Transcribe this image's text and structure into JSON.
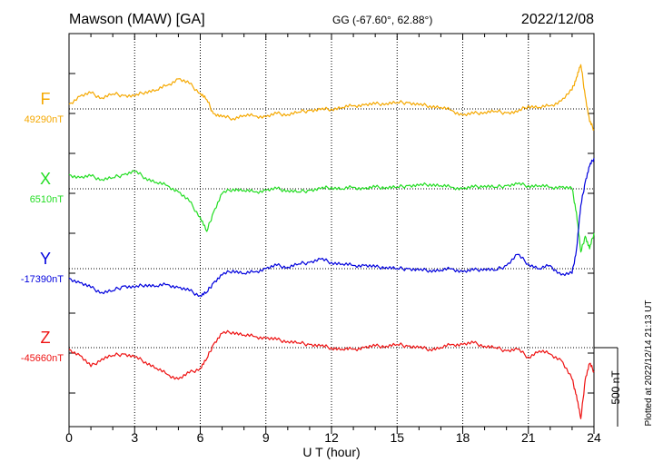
{
  "header": {
    "station": "Mawson (MAW)  [GA]",
    "coords": "GG (-67.60°,  62.88°)",
    "date": "2022/12/08"
  },
  "footer": {
    "plotted": "Plotted at 2022/12/14 21:13 UT"
  },
  "chart_data": {
    "type": "line",
    "title": "Mawson (MAW)  [GA]",
    "xlabel": "U T (hour)",
    "xlim": [
      0,
      24
    ],
    "x_ticks": [
      "0",
      "3",
      "6",
      "9",
      "12",
      "15",
      "18",
      "21",
      "24"
    ],
    "grid": true,
    "scale_bar": {
      "label": "500 nT",
      "value_nT": 500
    },
    "series": [
      {
        "name": "F",
        "baseline_label": "49290nT",
        "baseline_nT": 49290,
        "color": "#f5a800",
        "x": [
          0,
          0.5,
          1,
          1.5,
          2,
          2.5,
          3,
          3.5,
          4,
          4.5,
          5,
          5.5,
          6,
          6.3,
          6.6,
          7,
          7.5,
          8,
          8.5,
          9,
          9.5,
          10,
          10.5,
          11,
          11.5,
          12,
          12.5,
          13,
          13.5,
          14,
          14.5,
          15,
          15.5,
          16,
          16.5,
          17,
          17.5,
          18,
          18.5,
          19,
          19.5,
          20,
          20.5,
          21,
          21.5,
          22,
          22.5,
          23,
          23.2,
          23.4,
          23.6,
          23.8,
          24
        ],
        "values": [
          30,
          80,
          100,
          70,
          95,
          85,
          80,
          110,
          120,
          150,
          190,
          160,
          100,
          60,
          -30,
          -50,
          -60,
          -40,
          -45,
          -50,
          -30,
          -35,
          -20,
          -10,
          -5,
          0,
          10,
          20,
          25,
          30,
          35,
          40,
          40,
          25,
          20,
          10,
          -10,
          -40,
          -30,
          -20,
          -15,
          -25,
          -20,
          20,
          10,
          20,
          50,
          120,
          200,
          280,
          80,
          -80,
          -130
        ]
      },
      {
        "name": "X",
        "baseline_label": "6510nT",
        "baseline_nT": 6510,
        "color": "#22dd22",
        "x": [
          0,
          0.5,
          1,
          1.5,
          2,
          2.5,
          3,
          3.5,
          4,
          4.5,
          5,
          5.5,
          6,
          6.3,
          6.6,
          7,
          7.5,
          8,
          8.5,
          9,
          9.5,
          10,
          10.5,
          11,
          11.5,
          12,
          12.5,
          13,
          13.5,
          14,
          14.5,
          15,
          15.5,
          16,
          16.5,
          17,
          17.5,
          18,
          18.5,
          19,
          19.5,
          20,
          20.5,
          21,
          21.5,
          22,
          22.5,
          23,
          23.2,
          23.4,
          23.6,
          23.8,
          24
        ],
        "values": [
          90,
          70,
          80,
          60,
          70,
          90,
          110,
          70,
          40,
          20,
          -20,
          -80,
          -180,
          -270,
          -150,
          -30,
          0,
          -10,
          -20,
          -10,
          0,
          -10,
          -20,
          -10,
          0,
          10,
          0,
          10,
          0,
          10,
          10,
          10,
          20,
          20,
          30,
          20,
          10,
          0,
          10,
          20,
          10,
          20,
          30,
          20,
          20,
          10,
          10,
          0,
          -150,
          -400,
          -300,
          -380,
          -280
        ]
      },
      {
        "name": "Y",
        "baseline_label": "-17390nT",
        "baseline_nT": -17390,
        "color": "#0000dd",
        "x": [
          0,
          0.5,
          1,
          1.5,
          2,
          2.5,
          3,
          3.5,
          4,
          4.5,
          5,
          5.5,
          6,
          6.3,
          6.6,
          7,
          7.5,
          8,
          8.5,
          9,
          9.5,
          10,
          10.5,
          11,
          11.5,
          12,
          12.5,
          13,
          13.5,
          14,
          14.5,
          15,
          15.5,
          16,
          16.5,
          17,
          17.5,
          18,
          18.5,
          19,
          19.5,
          20,
          20.5,
          21,
          21.5,
          22,
          22.5,
          23,
          23.2,
          23.4,
          23.6,
          23.8,
          24
        ],
        "values": [
          -60,
          -90,
          -120,
          -150,
          -140,
          -110,
          -120,
          -100,
          -110,
          -100,
          -120,
          -140,
          -170,
          -150,
          -90,
          -40,
          -10,
          -30,
          -20,
          0,
          20,
          10,
          30,
          40,
          60,
          40,
          30,
          20,
          20,
          10,
          10,
          0,
          0,
          -10,
          -10,
          -10,
          0,
          -20,
          -10,
          0,
          -10,
          20,
          90,
          30,
          0,
          20,
          -40,
          -30,
          120,
          400,
          550,
          650,
          700
        ]
      },
      {
        "name": "Z",
        "baseline_label": "-45660nT",
        "baseline_nT": -45660,
        "color": "#ee1111",
        "x": [
          0,
          0.5,
          1,
          1.5,
          2,
          2.5,
          3,
          3.5,
          4,
          4.5,
          5,
          5.5,
          6,
          6.3,
          6.6,
          7,
          7.5,
          8,
          8.5,
          9,
          9.5,
          10,
          10.5,
          11,
          11.5,
          12,
          12.5,
          13,
          13.5,
          14,
          14.5,
          15,
          15.5,
          16,
          16.5,
          17,
          17.5,
          18,
          18.5,
          19,
          19.5,
          20,
          20.5,
          21,
          21.5,
          22,
          22.5,
          23,
          23.2,
          23.4,
          23.6,
          23.8,
          24
        ],
        "values": [
          -10,
          -50,
          -120,
          -70,
          -50,
          -40,
          -60,
          -90,
          -130,
          -170,
          -200,
          -160,
          -130,
          -70,
          20,
          90,
          100,
          80,
          70,
          60,
          50,
          40,
          30,
          20,
          10,
          0,
          -10,
          -10,
          0,
          10,
          10,
          20,
          10,
          0,
          -10,
          0,
          20,
          20,
          30,
          10,
          0,
          -20,
          -10,
          -60,
          -20,
          -40,
          -80,
          -200,
          -300,
          -450,
          -200,
          -100,
          -150
        ]
      }
    ]
  }
}
